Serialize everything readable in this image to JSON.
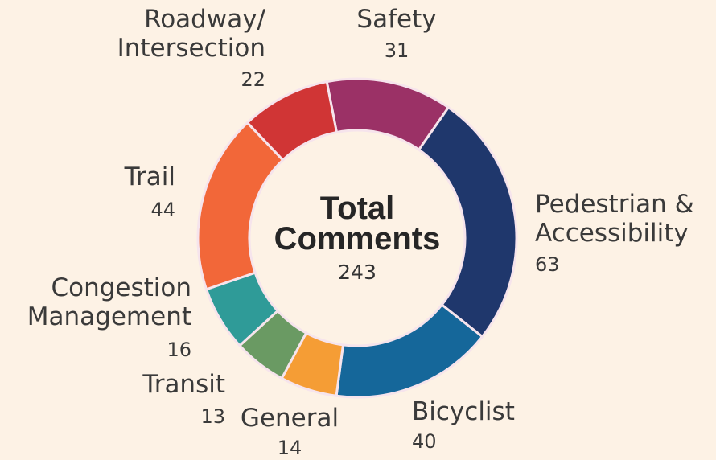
{
  "chart_data": {
    "type": "donut",
    "title": "Total\nComments",
    "total": 243,
    "categories": [
      "Safety",
      "Pedestrian &\nAccessibility",
      "Bicyclist",
      "General",
      "Transit",
      "Congestion\nManagement",
      "Trail",
      "Roadway/\nIntersection"
    ],
    "values": [
      31,
      63,
      40,
      14,
      13,
      16,
      44,
      22
    ],
    "colors": [
      "#9b3166",
      "#1f376c",
      "#15679a",
      "#f59d35",
      "#6a9a63",
      "#2f9b98",
      "#f26739",
      "#d03535"
    ]
  }
}
